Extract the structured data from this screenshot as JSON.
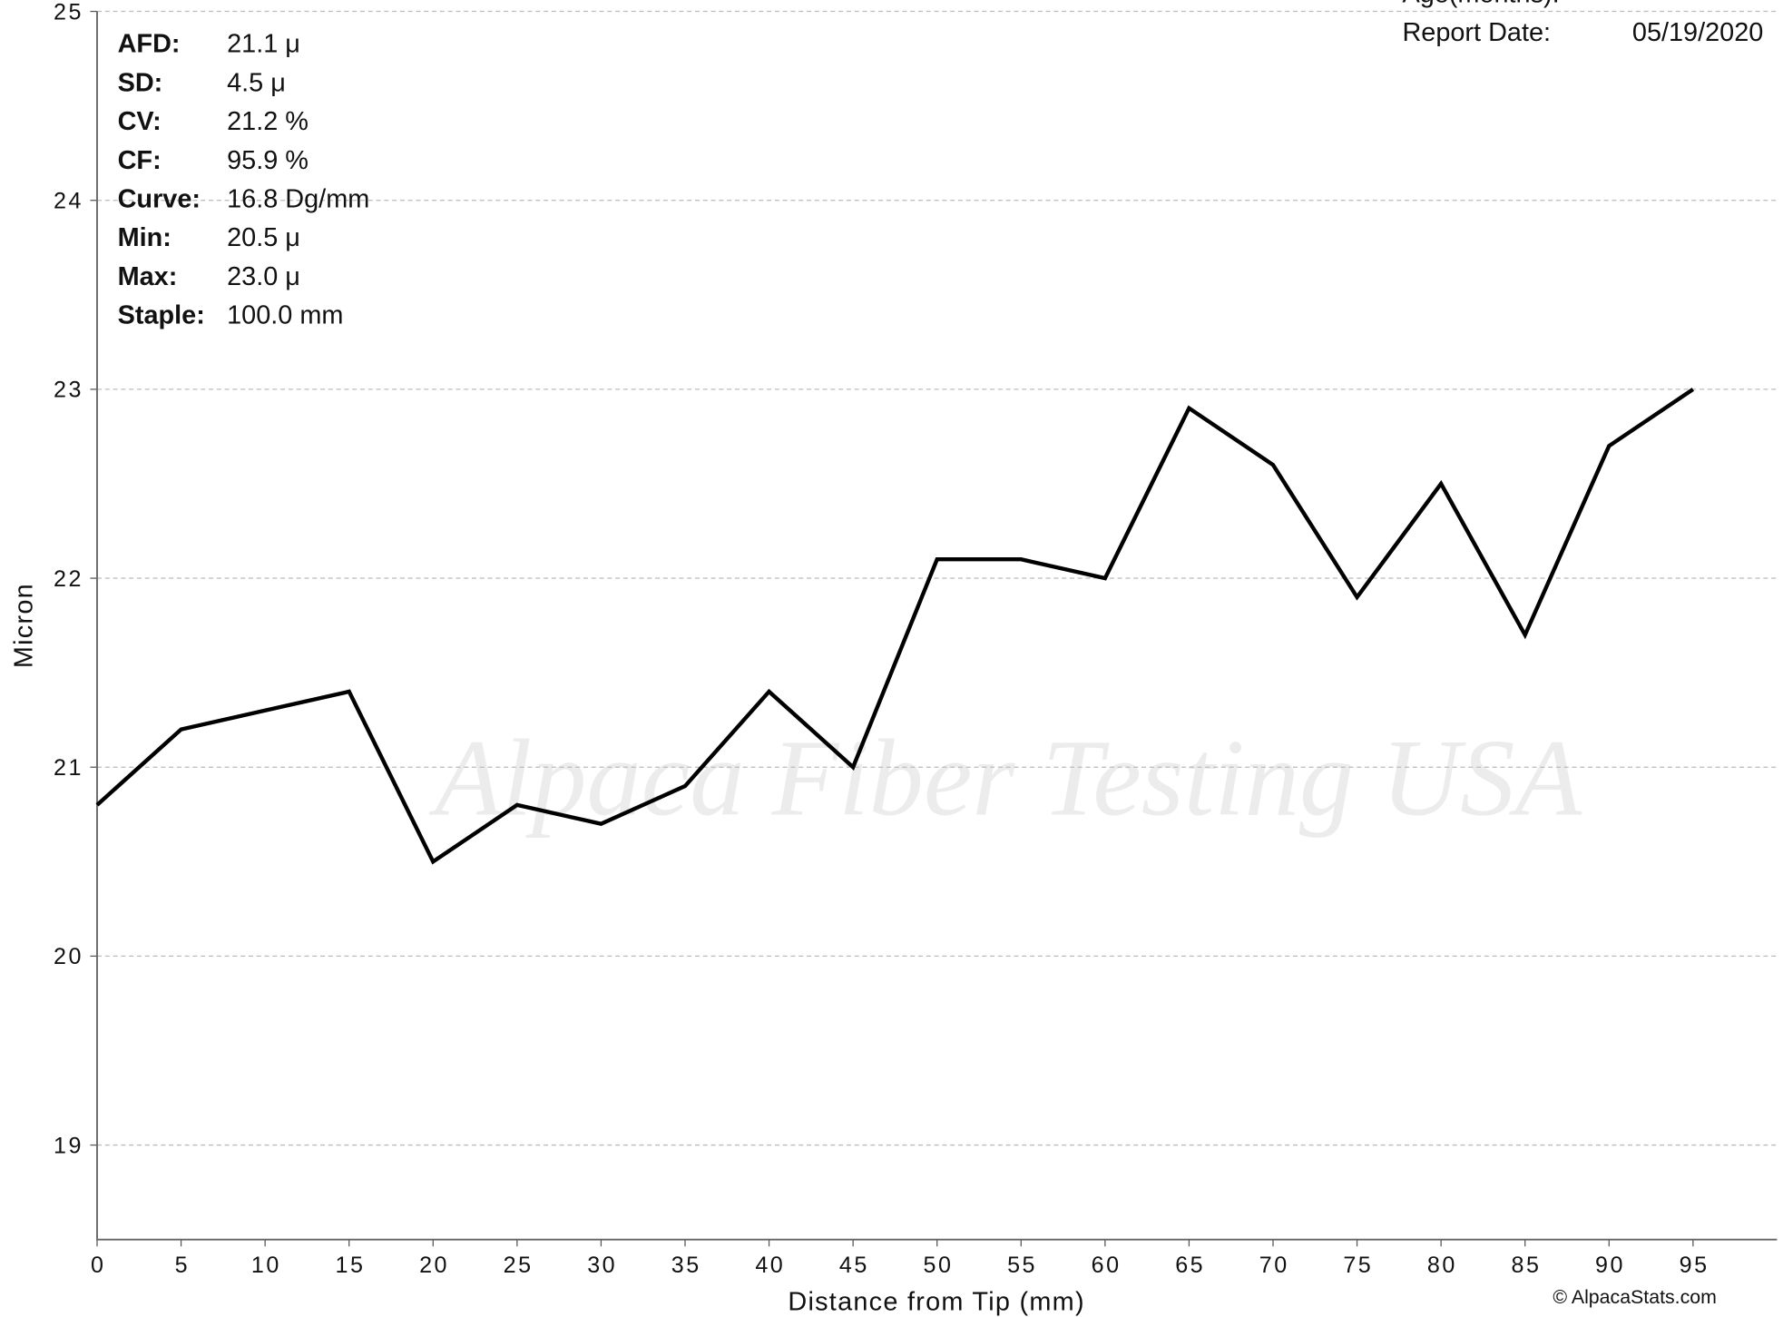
{
  "chart_data": {
    "type": "line",
    "x_label": "Distance from Tip (mm)",
    "y_label": "Micron",
    "x": [
      0,
      5,
      10,
      15,
      20,
      25,
      30,
      35,
      40,
      45,
      50,
      55,
      60,
      65,
      70,
      75,
      80,
      85,
      90,
      95
    ],
    "series": [
      {
        "color": "#000000",
        "values": [
          20.8,
          21.2,
          21.3,
          21.4,
          20.5,
          20.8,
          20.7,
          20.9,
          21.4,
          21.0,
          22.1,
          22.1,
          22.0,
          22.9,
          22.6,
          21.9,
          22.5,
          21.7,
          22.7,
          23.0
        ]
      }
    ],
    "xlim": [
      0,
      100
    ],
    "xticks": [
      0,
      5,
      10,
      15,
      20,
      25,
      30,
      35,
      40,
      45,
      50,
      55,
      60,
      65,
      70,
      75,
      80,
      85,
      90,
      95
    ],
    "ylim": [
      18.5,
      25
    ],
    "yticks": [
      19,
      20,
      21,
      22,
      23,
      24,
      25
    ],
    "grid": true,
    "stats": [
      [
        "AFD:",
        "21.1 μ"
      ],
      [
        "SD:",
        "4.5 μ"
      ],
      [
        "CV:",
        "21.2 %"
      ],
      [
        "CF:",
        "95.9 %"
      ],
      [
        "Curve:",
        "16.8 Dg/mm"
      ],
      [
        "Min:",
        "20.5 μ"
      ],
      [
        "Max:",
        "23.0 μ"
      ],
      [
        "Staple:",
        "100.0 mm"
      ]
    ],
    "header": [
      [
        "Age(months):"
      ],
      [
        "Report Date:",
        "05/19/2020"
      ]
    ],
    "watermark": "Alpaca Fiber Testing USA",
    "credit": "© AlpacaStats.com"
  }
}
